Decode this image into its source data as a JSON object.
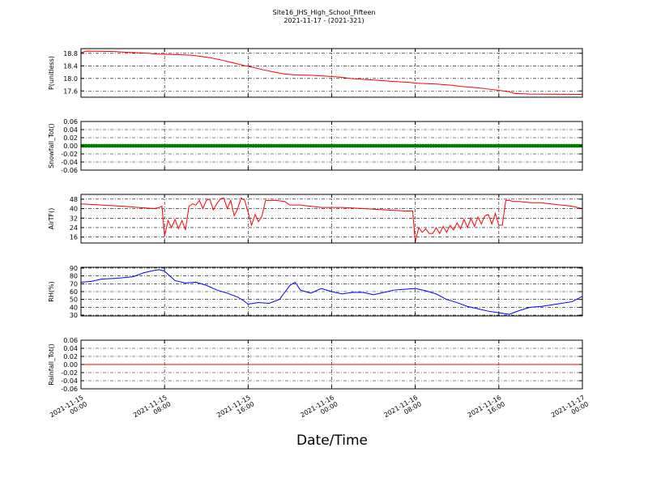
{
  "figure": {
    "title_line1": "Site16_JHS_High_School_Fifteen",
    "title_line2": "2021-11-17 - (2021-321)",
    "xlabel": "Date/Time",
    "x_ticks": [
      "2021-11-15\n00:00",
      "2021-11-15\n08:00",
      "2021-11-15\n16:00",
      "2021-11-16\n00:00",
      "2021-11-16\n08:00",
      "2021-11-16\n16:00",
      "2021-11-17\n00:00"
    ],
    "x_range_hours": [
      0,
      48
    ],
    "grid": true,
    "colors": {
      "pressure": "#ff0000",
      "snowfall": "#008000",
      "airtemp": "#ff0000",
      "rh": "#0000ff",
      "rainfall": "#ff0000"
    }
  },
  "chart_data": [
    {
      "type": "line",
      "ylabel": "P(unitless)",
      "ylim": [
        17.4,
        18.95
      ],
      "yticks": [
        17.6,
        18.0,
        18.4,
        18.8
      ],
      "ytick_labels": [
        "17.6",
        "18.0",
        "18.4",
        "18.8"
      ],
      "series": [
        {
          "color": "#ff0000",
          "marker": "none",
          "x": [
            "2021-11-15 00:00",
            "2021-11-15 00:30",
            "2021-11-15 03:00",
            "2021-11-15 04:30",
            "2021-11-15 06:30",
            "2021-11-15 07:00",
            "2021-11-15 09:00",
            "2021-11-15 10:30",
            "2021-11-15 11:30",
            "2021-11-15 12:30",
            "2021-11-15 13:30",
            "2021-11-15 14:30",
            "2021-11-15 15:30",
            "2021-11-15 16:30",
            "2021-11-15 17:30",
            "2021-11-15 18:30",
            "2021-11-15 19:30",
            "2021-11-15 20:30",
            "2021-11-15 22:00",
            "2021-11-16 00:30",
            "2021-11-16 02:00",
            "2021-11-16 04:00",
            "2021-11-16 06:00",
            "2021-11-16 07:30",
            "2021-11-16 08:00",
            "2021-11-16 10:00",
            "2021-11-16 11:30",
            "2021-11-16 12:30",
            "2021-11-16 14:00",
            "2021-11-16 15:00",
            "2021-11-16 16:00",
            "2021-11-16 17:00",
            "2021-11-16 17:30",
            "2021-11-16 19:00",
            "2021-11-17 00:00"
          ],
          "y": [
            18.82,
            18.87,
            18.86,
            18.83,
            18.8,
            18.78,
            18.76,
            18.74,
            18.7,
            18.65,
            18.58,
            18.5,
            18.42,
            18.35,
            18.27,
            18.2,
            18.14,
            18.11,
            18.1,
            18.05,
            17.99,
            17.95,
            17.9,
            17.87,
            17.85,
            17.82,
            17.78,
            17.74,
            17.7,
            17.66,
            17.62,
            17.57,
            17.52,
            17.5,
            17.49
          ]
        }
      ]
    },
    {
      "type": "scatter",
      "ylabel": "Snowfall_Tot()",
      "ylim": [
        -0.06,
        0.06
      ],
      "yticks": [
        -0.06,
        -0.04,
        -0.02,
        0.0,
        0.02,
        0.04,
        0.06
      ],
      "ytick_labels": [
        "-0.06",
        "-0.04",
        "-0.02",
        "0.00",
        "0.02",
        "0.04",
        "0.06"
      ],
      "series": [
        {
          "color": "#008000",
          "marker": "dot",
          "x_range": [
            "2021-11-15 00:00",
            "2021-11-17 00:00"
          ],
          "interval_minutes": 15,
          "constant_value": 0.0
        }
      ]
    },
    {
      "type": "line",
      "ylabel": "AirTF()",
      "ylim": [
        11,
        52
      ],
      "yticks": [
        16,
        24,
        32,
        40,
        48
      ],
      "ytick_labels": [
        "16",
        "24",
        "32",
        "40",
        "48"
      ],
      "series": [
        {
          "color": "#ff0000",
          "marker": "none",
          "x": [
            "2021-11-15 00:00",
            "2021-11-15 02:00",
            "2021-11-15 04:00",
            "2021-11-15 05:30",
            "2021-11-15 07:00",
            "2021-11-15 07:30",
            "2021-11-15 07:45",
            "2021-11-15 08:00",
            "2021-11-15 08:20",
            "2021-11-15 08:40",
            "2021-11-15 09:00",
            "2021-11-15 09:20",
            "2021-11-15 09:40",
            "2021-11-15 10:00",
            "2021-11-15 10:20",
            "2021-11-15 10:40",
            "2021-11-15 11:00",
            "2021-11-15 11:20",
            "2021-11-15 11:40",
            "2021-11-15 12:00",
            "2021-11-15 12:20",
            "2021-11-15 12:40",
            "2021-11-15 13:00",
            "2021-11-15 13:20",
            "2021-11-15 13:40",
            "2021-11-15 14:00",
            "2021-11-15 14:20",
            "2021-11-15 14:40",
            "2021-11-15 15:00",
            "2021-11-15 15:20",
            "2021-11-15 15:40",
            "2021-11-15 16:00",
            "2021-11-15 16:20",
            "2021-11-15 16:40",
            "2021-11-15 17:00",
            "2021-11-15 17:20",
            "2021-11-15 17:40",
            "2021-11-15 18:40",
            "2021-11-15 19:30",
            "2021-11-15 20:00",
            "2021-11-15 21:00",
            "2021-11-15 23:00",
            "2021-11-16 01:00",
            "2021-11-16 03:00",
            "2021-11-16 05:00",
            "2021-11-16 07:00",
            "2021-11-16 07:45",
            "2021-11-16 08:00",
            "2021-11-16 08:20",
            "2021-11-16 08:40",
            "2021-11-16 09:00",
            "2021-11-16 09:20",
            "2021-11-16 09:40",
            "2021-11-16 10:00",
            "2021-11-16 10:20",
            "2021-11-16 10:40",
            "2021-11-16 11:00",
            "2021-11-16 11:20",
            "2021-11-16 11:40",
            "2021-11-16 12:00",
            "2021-11-16 12:20",
            "2021-11-16 12:40",
            "2021-11-16 13:00",
            "2021-11-16 13:20",
            "2021-11-16 13:40",
            "2021-11-16 14:00",
            "2021-11-16 14:20",
            "2021-11-16 14:40",
            "2021-11-16 15:00",
            "2021-11-16 15:20",
            "2021-11-16 15:40",
            "2021-11-16 16:00",
            "2021-11-16 16:20",
            "2021-11-16 16:40",
            "2021-11-16 17:00",
            "2021-11-16 17:20",
            "2021-11-16 18:00",
            "2021-11-16 19:00",
            "2021-11-16 20:00",
            "2021-11-16 21:00",
            "2021-11-16 23:00",
            "2021-11-17 00:00"
          ],
          "y": [
            44,
            43,
            42,
            41,
            40,
            41,
            42,
            17,
            30,
            24,
            31,
            23,
            30,
            22,
            42,
            44,
            43,
            47,
            40,
            47,
            48,
            39,
            44,
            48,
            49,
            40,
            47,
            34,
            40,
            49,
            47,
            37,
            26,
            35,
            29,
            34,
            47,
            47,
            46,
            43,
            43,
            41,
            41,
            40,
            39,
            38,
            38,
            12,
            24,
            20,
            23,
            19,
            19,
            24,
            19,
            25,
            20,
            26,
            22,
            28,
            23,
            31,
            24,
            32,
            25,
            33,
            27,
            34,
            35,
            27,
            36,
            26,
            26,
            47,
            47,
            46,
            46,
            45,
            45,
            44,
            42,
            40
          ]
        }
      ]
    },
    {
      "type": "line",
      "ylabel": "RH(%)",
      "ylim": [
        29,
        91
      ],
      "yticks": [
        30,
        40,
        50,
        60,
        70,
        80,
        90
      ],
      "ytick_labels": [
        "30",
        "40",
        "50",
        "60",
        "70",
        "80",
        "90"
      ],
      "series": [
        {
          "color": "#0000ff",
          "marker": "none",
          "x": [
            "2021-11-15 00:00",
            "2021-11-15 01:00",
            "2021-11-15 02:00",
            "2021-11-15 03:30",
            "2021-11-15 05:00",
            "2021-11-15 06:00",
            "2021-11-15 07:00",
            "2021-11-15 07:30",
            "2021-11-15 08:00",
            "2021-11-15 09:00",
            "2021-11-15 10:00",
            "2021-11-15 11:00",
            "2021-11-15 12:00",
            "2021-11-15 13:00",
            "2021-11-15 14:00",
            "2021-11-15 15:00",
            "2021-11-15 15:30",
            "2021-11-15 16:00",
            "2021-11-15 17:00",
            "2021-11-15 18:00",
            "2021-11-15 19:00",
            "2021-11-15 20:00",
            "2021-11-15 20:30",
            "2021-11-15 21:00",
            "2021-11-15 22:00",
            "2021-11-15 23:00",
            "2021-11-16 00:00",
            "2021-11-16 01:00",
            "2021-11-16 02:00",
            "2021-11-16 03:00",
            "2021-11-16 04:00",
            "2021-11-16 05:00",
            "2021-11-16 06:00",
            "2021-11-16 07:00",
            "2021-11-16 08:00",
            "2021-11-16 09:00",
            "2021-11-16 10:00",
            "2021-11-16 11:00",
            "2021-11-16 12:00",
            "2021-11-16 13:00",
            "2021-11-16 14:00",
            "2021-11-16 15:00",
            "2021-11-16 16:00",
            "2021-11-16 17:00",
            "2021-11-16 18:00",
            "2021-11-16 19:00",
            "2021-11-16 20:00",
            "2021-11-16 21:00",
            "2021-11-16 22:00",
            "2021-11-16 23:00",
            "2021-11-17 00:00"
          ],
          "y": [
            72,
            73,
            76,
            77,
            79,
            84,
            87,
            88,
            86,
            74,
            71,
            72,
            68,
            62,
            58,
            53,
            49,
            44,
            46,
            45,
            50,
            68,
            72,
            62,
            58,
            64,
            60,
            57,
            59,
            59,
            56,
            59,
            62,
            63,
            64,
            61,
            57,
            50,
            46,
            41,
            38,
            35,
            33,
            31,
            36,
            40,
            41,
            43,
            45,
            47,
            54
          ]
        }
      ]
    },
    {
      "type": "line",
      "ylabel": "Rainfall_Tot()",
      "ylim": [
        -0.06,
        0.06
      ],
      "yticks": [
        -0.06,
        -0.04,
        -0.02,
        0.0,
        0.02,
        0.04,
        0.06
      ],
      "ytick_labels": [
        "-0.06",
        "-0.04",
        "-0.02",
        "0.00",
        "0.02",
        "0.04",
        "0.06"
      ],
      "series": [
        {
          "color": "#ff0000",
          "marker": "none",
          "x": [
            "2021-11-15 00:00",
            "2021-11-17 00:00"
          ],
          "y": [
            0.0,
            0.0
          ]
        }
      ]
    }
  ]
}
